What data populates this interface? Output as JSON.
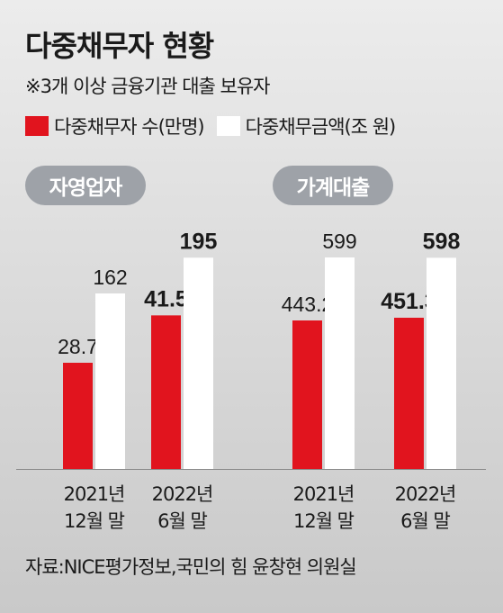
{
  "title": "다중채무자 현황",
  "subtitle": "※3개 이상 금융기관 대출 보유자",
  "legend": [
    {
      "label": "다중채무자 수(만명)",
      "color": "#e1141e"
    },
    {
      "label": "다중채무금액(조 원)",
      "color": "#ffffff"
    }
  ],
  "source": "자료:NICE평가정보,국민의 힘 윤창현 의원실",
  "colors": {
    "red": "#e1141e",
    "white": "#ffffff",
    "pill": "#9ea2a8"
  },
  "chart_data": [
    {
      "type": "bar",
      "title": "자영업자",
      "categories": [
        "2021년\n12월 말",
        "2022년\n6월 말"
      ],
      "series": [
        {
          "name": "다중채무자 수(만명)",
          "values": [
            28.7,
            41.5
          ],
          "labels": [
            "28.7",
            "41.5"
          ]
        },
        {
          "name": "다중채무금액(조 원)",
          "values": [
            162,
            195
          ],
          "labels": [
            "162",
            "195"
          ]
        }
      ]
    },
    {
      "type": "bar",
      "title": "가계대출",
      "categories": [
        "2021년\n12월 말",
        "2022년\n6월 말"
      ],
      "series": [
        {
          "name": "다중채무자 수(만명)",
          "values": [
            443.2,
            451.3
          ],
          "labels": [
            "443.2",
            "451.3"
          ]
        },
        {
          "name": "다중채무금액(조 원)",
          "values": [
            599,
            598
          ],
          "labels": [
            "599",
            "598"
          ]
        }
      ]
    }
  ]
}
